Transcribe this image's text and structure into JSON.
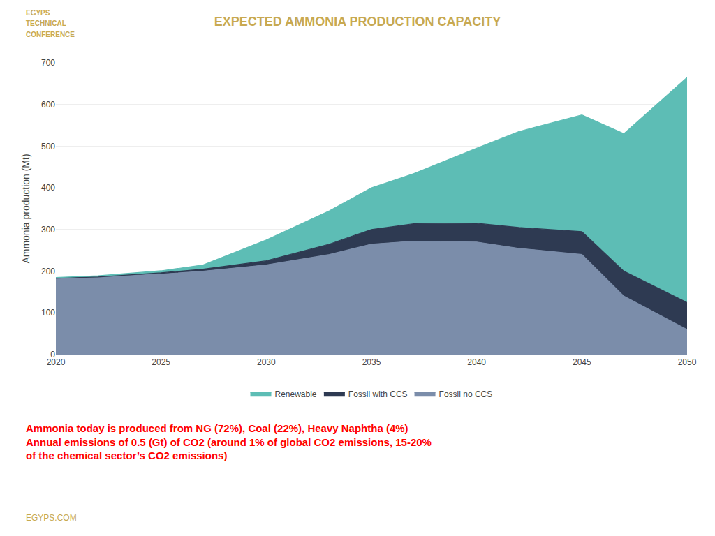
{
  "chart_data": {
    "type": "area",
    "stacked": true,
    "title": "EXPECTED AMMONIA PRODUCTION CAPACITY",
    "ylabel": "Ammonia production (Mt)",
    "x": [
      2020,
      2022,
      2025,
      2027,
      2030,
      2033,
      2035,
      2037,
      2040,
      2042,
      2045,
      2047,
      2050
    ],
    "series": [
      {
        "name": "Fossil no CCS",
        "color": "#7B8DAA",
        "values": [
          183,
          186,
          193,
          200,
          215,
          240,
          265,
          272,
          270,
          255,
          240,
          140,
          60
        ]
      },
      {
        "name": "Fossil with CCS",
        "color": "#2E3A52",
        "values": [
          0,
          0,
          3,
          5,
          10,
          25,
          35,
          42,
          45,
          50,
          55,
          60,
          65
        ]
      },
      {
        "name": "Renewable",
        "color": "#5DBDB5",
        "values": [
          2,
          3,
          5,
          10,
          50,
          80,
          100,
          120,
          180,
          230,
          280,
          330,
          540
        ]
      }
    ],
    "xlim": [
      2020,
      2050
    ],
    "xticks": [
      2020,
      2025,
      2030,
      2035,
      2040,
      2045,
      2050
    ],
    "ylim": [
      0,
      700
    ],
    "yticks": [
      0,
      100,
      200,
      300,
      400,
      500,
      600,
      700
    ],
    "grid": true,
    "legend": "bottom",
    "annotations": [
      "Ammonia today is produced from NG (72%), Coal (22%), Heavy Naphtha (4%)",
      "Annual emissions of 0.5 (Gt) of CO2 (around 1% of global CO2 emissions, 15-20%",
      "of the chemical sector’s CO2 emissions)"
    ],
    "footer": "EGYPS.COM",
    "logo_texts": [
      "EGYPS",
      "TECHNICAL",
      "CONFERENCE"
    ]
  }
}
